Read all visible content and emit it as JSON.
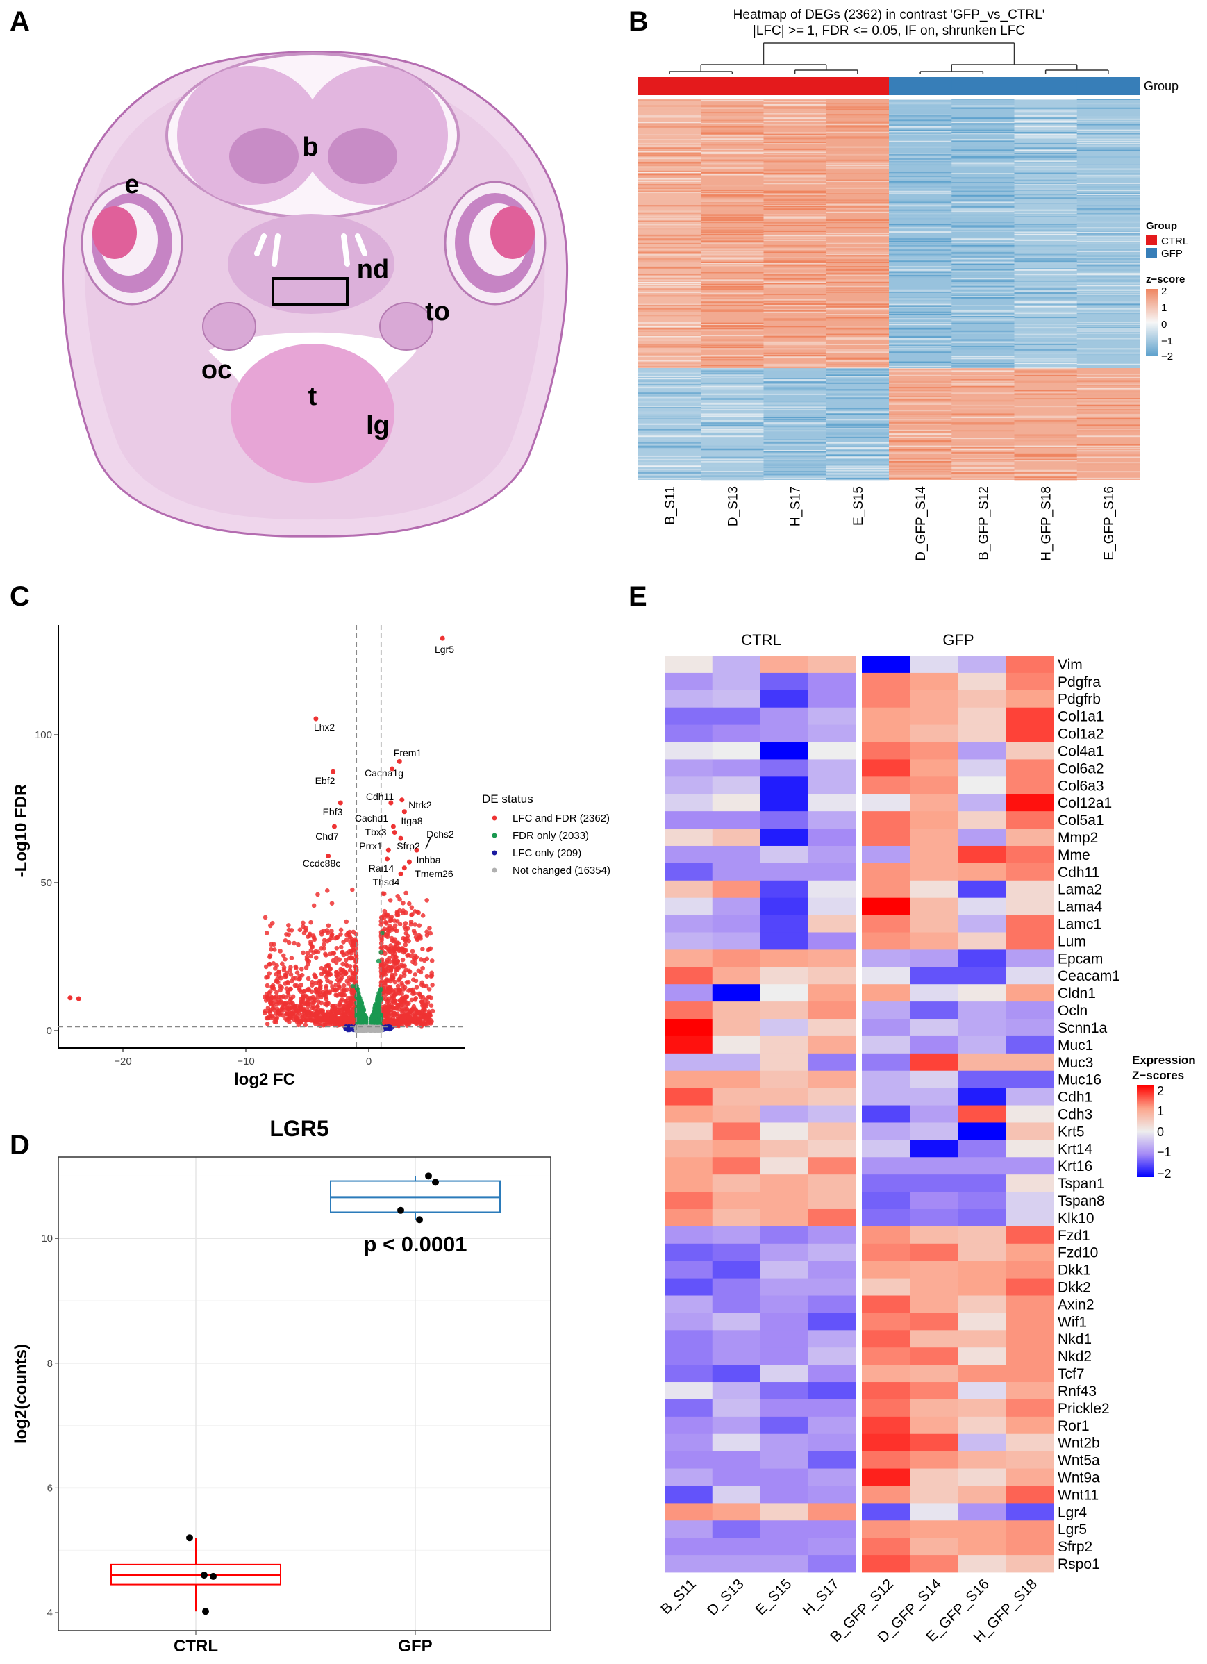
{
  "panel_labels": {
    "a": "A",
    "b": "B",
    "c": "C",
    "d": "D",
    "e": "E"
  },
  "panel_a": {
    "labels": {
      "b": "b",
      "e": "e",
      "nd": "nd",
      "to": "to",
      "oc": "oc",
      "t": "t",
      "lg": "lg"
    }
  },
  "chart_data": [
    {
      "id": "heatmap_degs",
      "type": "heatmap",
      "title_line1": "Heatmap of DEGs (2362) in contrast 'GFP_vs_CTRL'",
      "title_line2": "|LFC| >= 1, FDR <= 0.05, IF on, shrunken LFC",
      "columns": [
        "B_S11",
        "D_S13",
        "H_S17",
        "E_S15",
        "D_GFP_S14",
        "B_GFP_S12",
        "H_GFP_S18",
        "E_GFP_S16"
      ],
      "column_groups": [
        "CTRL",
        "CTRL",
        "CTRL",
        "CTRL",
        "GFP",
        "GFP",
        "GFP",
        "GFP"
      ],
      "annotation_label": "Group",
      "n_genes": 2362,
      "clusters": [
        {
          "label": "higher in CTRL",
          "fraction": 0.707,
          "ctrl_z": 0.9,
          "gfp_z": -0.8
        },
        {
          "label": "higher in GFP",
          "fraction": 0.293,
          "ctrl_z": -0.8,
          "gfp_z": 0.9
        }
      ],
      "legend": {
        "group_title": "Group",
        "groups": [
          {
            "name": "CTRL",
            "color": "#E41A1C"
          },
          {
            "name": "GFP",
            "color": "#377EB8"
          }
        ],
        "scale_title": "z−score",
        "ticks": [
          "2",
          "1",
          "0",
          "−1",
          "−2"
        ]
      },
      "colors": {
        "low": "#5fa2cd",
        "mid": "#f7f7f7",
        "high": "#ef8560"
      }
    },
    {
      "id": "volcano",
      "type": "scatter",
      "xlabel": "log2 FC",
      "ylabel": "-Log10 FDR",
      "xlim": [
        -25.5,
        7.6
      ],
      "ylim": [
        -5.9,
        137
      ],
      "xticks": [
        -20,
        -10,
        0
      ],
      "yticks": [
        0,
        50,
        100
      ],
      "thresholds": {
        "lfc": 1,
        "neg_log10_fdr": 1.3
      },
      "legend_title": "DE status",
      "legend": [
        {
          "label": "LFC and FDR (2362)",
          "color": "#ee3333",
          "count": 2362
        },
        {
          "label": "FDR only (2033)",
          "color": "#1a9850",
          "count": 2033
        },
        {
          "label": "LFC only (209)",
          "color": "#1a1aa0",
          "count": 209
        },
        {
          "label": "Not changed (16354)",
          "color": "#b0b0b0",
          "count": 16354
        }
      ],
      "labeled_points": [
        {
          "gene": "Lgr5",
          "x": 6.0,
          "y": 132.6
        },
        {
          "gene": "Lhx2",
          "x": -4.3,
          "y": 105.4
        },
        {
          "gene": "Frem1",
          "x": 2.5,
          "y": 91
        },
        {
          "gene": "Cacna1g",
          "x": 1.9,
          "y": 88.5
        },
        {
          "gene": "Ebf2",
          "x": -2.9,
          "y": 87.5
        },
        {
          "gene": "Cdh11",
          "x": 1.8,
          "y": 77
        },
        {
          "gene": "Ntrk2",
          "x": 2.7,
          "y": 78
        },
        {
          "gene": "Ebf3",
          "x": -2.3,
          "y": 77
        },
        {
          "gene": "Itga8",
          "x": 2.9,
          "y": 74
        },
        {
          "gene": "Cachd1",
          "x": 2.0,
          "y": 69
        },
        {
          "gene": "Chd7",
          "x": -2.8,
          "y": 69
        },
        {
          "gene": "Tbx3",
          "x": 2.1,
          "y": 67
        },
        {
          "gene": "Dchs2",
          "x": 3.9,
          "y": 61
        },
        {
          "gene": "Sfrp2",
          "x": 2.6,
          "y": 65
        },
        {
          "gene": "Prrx1",
          "x": 1.6,
          "y": 61
        },
        {
          "gene": "Ccdc88c",
          "x": -3.3,
          "y": 59
        },
        {
          "gene": "Inhba",
          "x": 3.3,
          "y": 57
        },
        {
          "gene": "Rai14",
          "x": 1.5,
          "y": 58
        },
        {
          "gene": "Tmem26",
          "x": 2.9,
          "y": 55
        },
        {
          "gene": "Thsd4",
          "x": 2.6,
          "y": 53
        }
      ],
      "outliers": [
        {
          "x": -24.3,
          "y": 11.1
        },
        {
          "x": -23.6,
          "y": 10.8
        }
      ]
    },
    {
      "id": "lgr5_box",
      "type": "box",
      "title": "LGR5",
      "ylabel": "log2(counts)",
      "ylim": [
        3.7,
        11.3
      ],
      "yticks": [
        4,
        6,
        8,
        10
      ],
      "categories": [
        "CTRL",
        "GFP"
      ],
      "boxes": [
        {
          "name": "CTRL",
          "color": "#ff0000",
          "q1": 4.45,
          "median": 4.6,
          "q3": 4.77,
          "whisker_low": 4.02,
          "whisker_high": 5.2,
          "points": [
            5.2,
            4.6,
            4.58,
            4.02
          ]
        },
        {
          "name": "GFP",
          "color": "#2b7bba",
          "q1": 10.42,
          "median": 10.66,
          "q3": 10.92,
          "whisker_low": 10.3,
          "whisker_high": 11.0,
          "points": [
            11.0,
            10.9,
            10.45,
            10.3
          ]
        }
      ],
      "annotation": "p < 0.0001"
    },
    {
      "id": "expression_heatmap",
      "type": "heatmap",
      "group_headers": [
        "CTRL",
        "GFP"
      ],
      "columns": [
        "B_S11",
        "D_S13",
        "E_S15",
        "H_S17",
        "B_GFP_S12",
        "D_GFP_S14",
        "E_GFP_S16",
        "H_GFP_S18"
      ],
      "legend_title_line1": "Expression",
      "legend_title_line2": "Z−scores",
      "legend_ticks": [
        "2",
        "1",
        "0",
        "−1",
        "−2"
      ],
      "genes": [
        "Vim",
        "Pdgfra",
        "Pdgfrb",
        "Col1a1",
        "Col1a2",
        "Col4a1",
        "Col6a2",
        "Col6a3",
        "Col12a1",
        "Col5a1",
        "Mmp2",
        "Mme",
        "Cdh11",
        "Lama2",
        "Lama4",
        "Lamc1",
        "Lum",
        "Epcam",
        "Ceacam1",
        "Cldn1",
        "Ocln",
        "Scnn1a",
        "Muc1",
        "Muc3",
        "Muc16",
        "Cdh1",
        "Cdh3",
        "Krt5",
        "Krt14",
        "Krt16",
        "Tspan1",
        "Tspan8",
        "Klk10",
        "Fzd1",
        "Fzd10",
        "Dkk1",
        "Dkk2",
        "Axin2",
        "Wif1",
        "Nkd1",
        "Nkd2",
        "Tcf7",
        "Rnf43",
        "Prickle2",
        "Ror1",
        "Wnt2b",
        "Wnt5a",
        "Wnt9a",
        "Wnt11",
        "Lgr4",
        "Lgr5",
        "Sfrp2",
        "Rspo1"
      ],
      "values": [
        [
          0.1,
          -0.6,
          0.9,
          0.7,
          -2,
          -0.2,
          -0.6,
          1.3
        ],
        [
          -0.9,
          -0.6,
          -1.3,
          -1.0,
          1.2,
          1.0,
          0.3,
          1.2
        ],
        [
          -0.6,
          -0.5,
          -1.6,
          -1.0,
          1.2,
          0.9,
          0.6,
          1.0
        ],
        [
          -1.2,
          -1.2,
          -0.9,
          -0.6,
          1.0,
          0.9,
          0.4,
          1.6
        ],
        [
          -1.1,
          -1.0,
          -0.9,
          -0.7,
          1.0,
          0.7,
          0.4,
          1.6
        ],
        [
          -0.1,
          0,
          -2,
          0,
          1.3,
          1.1,
          -0.8,
          0.5
        ],
        [
          -0.8,
          -0.9,
          -1.2,
          -0.6,
          1.6,
          1.0,
          -0.3,
          1.2
        ],
        [
          -0.6,
          -0.4,
          -1.8,
          -0.6,
          1.2,
          1.1,
          0,
          1.2
        ],
        [
          -0.3,
          0.1,
          -1.8,
          -0.1,
          -0.1,
          0.9,
          -0.6,
          1.9
        ],
        [
          -1.0,
          -1.0,
          -1.2,
          -0.7,
          1.3,
          1.0,
          0.4,
          1.3
        ],
        [
          0.3,
          0.6,
          -1.8,
          -1.0,
          1.3,
          0.9,
          -0.8,
          0.8
        ],
        [
          -0.9,
          -0.9,
          -0.4,
          -0.8,
          -0.8,
          0.9,
          1.6,
          1.3
        ],
        [
          -1.3,
          -0.9,
          -0.9,
          -0.9,
          1.1,
          0.9,
          1.0,
          1.2
        ],
        [
          0.6,
          1.1,
          -1.5,
          -0.1,
          1.1,
          0.2,
          -1.5,
          0.3
        ],
        [
          -0.2,
          -0.8,
          -1.6,
          -0.2,
          2.0,
          0.7,
          -0.2,
          0.3
        ],
        [
          -0.8,
          -0.9,
          -1.5,
          0.5,
          1.2,
          0.7,
          -0.6,
          1.3
        ],
        [
          -0.6,
          -0.7,
          -1.5,
          -1.0,
          1.1,
          0.9,
          0.4,
          1.3
        ],
        [
          0.9,
          1.1,
          1.0,
          0.9,
          -0.7,
          -0.8,
          -1.5,
          -0.8
        ],
        [
          1.4,
          0.9,
          0.3,
          0.5,
          -0.1,
          -1.4,
          -1.4,
          -0.2
        ],
        [
          -0.9,
          -2,
          0,
          1.0,
          1.0,
          -0.2,
          0.1,
          1.0
        ],
        [
          1.3,
          0.7,
          0.6,
          1.1,
          -0.7,
          -1.3,
          -0.7,
          -0.9
        ],
        [
          2.0,
          0.7,
          -0.4,
          0.4,
          -0.9,
          -0.4,
          -0.7,
          -0.8
        ],
        [
          1.9,
          0.1,
          0.4,
          0.9,
          -0.4,
          -1.0,
          -0.6,
          -1.3
        ],
        [
          -0.6,
          -0.6,
          0.4,
          -1.1,
          -1.1,
          1.6,
          0.8,
          0.8
        ],
        [
          1.0,
          1.0,
          0.6,
          0.9,
          -0.6,
          -0.3,
          -1.3,
          -1.3
        ],
        [
          1.5,
          0.7,
          0.7,
          0.5,
          -0.6,
          -0.6,
          -1.8,
          -0.6
        ],
        [
          1.0,
          0.8,
          -0.7,
          -0.5,
          -1.5,
          -0.8,
          1.5,
          0.1
        ],
        [
          0.4,
          1.3,
          0.1,
          0.6,
          -0.7,
          -0.5,
          -2,
          0.6
        ],
        [
          0.8,
          1.0,
          0.6,
          0.4,
          -0.4,
          -1.9,
          -1.1,
          0.1
        ],
        [
          1.0,
          1.3,
          0.2,
          1.2,
          -0.9,
          -0.9,
          -0.9,
          -0.9
        ],
        [
          1.0,
          0.7,
          0.9,
          0.7,
          -1.2,
          -1.2,
          -1.2,
          0.2
        ],
        [
          1.3,
          0.9,
          0.9,
          0.7,
          -1.3,
          -1.0,
          -1.1,
          -0.3
        ],
        [
          1.1,
          0.7,
          0.9,
          1.3,
          -1.2,
          -1.1,
          -1.2,
          -0.3
        ],
        [
          -0.9,
          -0.8,
          -1.1,
          -0.9,
          1.1,
          0.7,
          0.6,
          1.4
        ],
        [
          -1.3,
          -1.2,
          -0.8,
          -0.6,
          1.2,
          1.3,
          0.6,
          1.0
        ],
        [
          -1.1,
          -1.4,
          -0.5,
          -0.9,
          1.0,
          0.9,
          1.0,
          1.1
        ],
        [
          -1.4,
          -1.1,
          -0.8,
          -0.8,
          0.5,
          0.9,
          1.0,
          1.4
        ],
        [
          -0.7,
          -1.1,
          -0.9,
          -1.1,
          1.4,
          0.9,
          0.5,
          1.1
        ],
        [
          -0.8,
          -0.5,
          -1.0,
          -1.4,
          1.2,
          1.3,
          0.2,
          1.1
        ],
        [
          -1.1,
          -0.9,
          -1.0,
          -0.7,
          1.4,
          0.7,
          0.7,
          1.1
        ],
        [
          -1.1,
          -0.9,
          -1.0,
          -0.5,
          1.2,
          1.3,
          0.2,
          1.1
        ],
        [
          -1.2,
          -1.4,
          -0.3,
          -1.0,
          0.9,
          0.8,
          1.1,
          1.1
        ],
        [
          -0.1,
          -0.6,
          -1.2,
          -1.4,
          1.4,
          1.2,
          -0.2,
          0.9
        ],
        [
          -1.2,
          -0.5,
          -1.0,
          -1.0,
          1.3,
          0.8,
          0.7,
          1.2
        ],
        [
          -1.0,
          -0.8,
          -1.3,
          -0.8,
          1.6,
          0.9,
          0.4,
          1.0
        ],
        [
          -0.9,
          -0.2,
          -0.8,
          -0.9,
          1.7,
          1.5,
          -0.5,
          0.4
        ],
        [
          -1.0,
          -1.0,
          -0.8,
          -1.3,
          1.3,
          1.1,
          0.8,
          0.7
        ],
        [
          -0.7,
          -1.0,
          -1.0,
          -0.8,
          1.8,
          0.5,
          0.3,
          0.9
        ],
        [
          -1.4,
          -0.3,
          -1.0,
          -0.9,
          1.1,
          0.5,
          0.8,
          1.4
        ],
        [
          1.1,
          1.0,
          0.4,
          1.1,
          -1.4,
          -0.1,
          -0.9,
          -1.4
        ],
        [
          -0.8,
          -1.2,
          -1.0,
          -1.0,
          1.1,
          1.0,
          1.0,
          1.1
        ],
        [
          -1.0,
          -1.0,
          -1.0,
          -0.9,
          1.3,
          0.8,
          1.0,
          1.1
        ],
        [
          -0.8,
          -0.8,
          -0.8,
          -1.1,
          1.5,
          1.2,
          0.3,
          0.6
        ]
      ],
      "colors": {
        "m2": "#0000ff",
        "m1": "#a58af6",
        "zero": "#eeeeee",
        "p1": "#fca58c",
        "p2": "#ff0000"
      }
    }
  ]
}
